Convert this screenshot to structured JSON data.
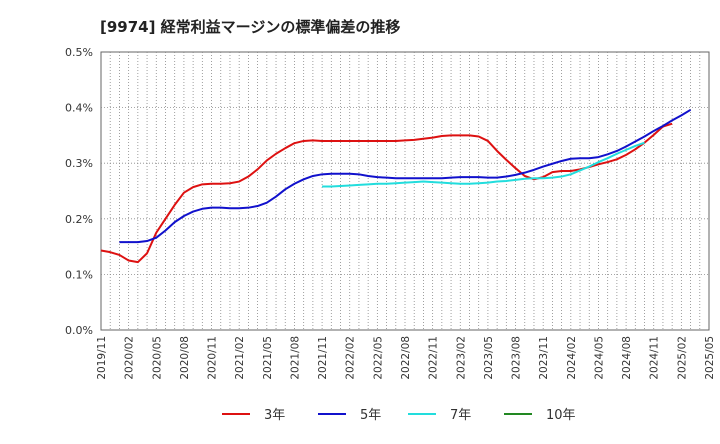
{
  "chart_data": {
    "type": "line",
    "title": "[9974]  経常利益マージンの標準偏差の推移",
    "xlabel": "",
    "ylabel": "",
    "ylim": [
      0,
      0.5
    ],
    "yticks": [
      "0.0%",
      "0.1%",
      "0.2%",
      "0.3%",
      "0.4%",
      "0.5%"
    ],
    "yvalues": [
      0,
      0.1,
      0.2,
      0.3,
      0.4,
      0.5
    ],
    "x_start": "2019/11",
    "x_end": "2025/05",
    "xticks": [
      "2019/11",
      "2020/02",
      "2020/05",
      "2020/08",
      "2020/11",
      "2021/02",
      "2021/05",
      "2021/08",
      "2021/11",
      "2022/02",
      "2022/05",
      "2022/08",
      "2022/11",
      "2023/02",
      "2023/05",
      "2023/08",
      "2023/11",
      "2024/02",
      "2024/05",
      "2024/08",
      "2024/11",
      "2025/02",
      "2025/05"
    ],
    "grid": true,
    "legend_position": "bottom",
    "series": [
      {
        "name": "3年",
        "color": "#dd1111",
        "start": "2019/11",
        "values": [
          0.143,
          0.14,
          0.135,
          0.125,
          0.122,
          0.138,
          0.175,
          0.2,
          0.225,
          0.247,
          0.257,
          0.262,
          0.263,
          0.263,
          0.264,
          0.267,
          0.276,
          0.289,
          0.305,
          0.317,
          0.327,
          0.336,
          0.34,
          0.341,
          0.34,
          0.34,
          0.34,
          0.34,
          0.34,
          0.34,
          0.34,
          0.34,
          0.34,
          0.341,
          0.342,
          0.344,
          0.346,
          0.349,
          0.35,
          0.35,
          0.35,
          0.348,
          0.34,
          0.322,
          0.306,
          0.291,
          0.277,
          0.271,
          0.275,
          0.284,
          0.286,
          0.286,
          0.289,
          0.293,
          0.298,
          0.302,
          0.307,
          0.315,
          0.325,
          0.337,
          0.351,
          0.366,
          0.371
        ]
      },
      {
        "name": "5年",
        "color": "#1111cc",
        "start": "2020/01",
        "values": [
          0.158,
          0.158,
          0.158,
          0.16,
          0.166,
          0.179,
          0.194,
          0.205,
          0.213,
          0.218,
          0.22,
          0.22,
          0.219,
          0.219,
          0.22,
          0.223,
          0.229,
          0.24,
          0.253,
          0.263,
          0.271,
          0.277,
          0.28,
          0.281,
          0.281,
          0.281,
          0.28,
          0.277,
          0.275,
          0.274,
          0.273,
          0.273,
          0.273,
          0.273,
          0.273,
          0.273,
          0.274,
          0.275,
          0.275,
          0.275,
          0.274,
          0.274,
          0.276,
          0.279,
          0.283,
          0.288,
          0.294,
          0.299,
          0.304,
          0.308,
          0.309,
          0.309,
          0.311,
          0.316,
          0.322,
          0.33,
          0.339,
          0.348,
          0.358,
          0.367,
          0.377,
          0.386,
          0.396
        ]
      },
      {
        "name": "7年",
        "color": "#22dddd",
        "start": "2021/11",
        "values": [
          0.258,
          0.258,
          0.259,
          0.26,
          0.261,
          0.262,
          0.263,
          0.263,
          0.264,
          0.265,
          0.266,
          0.267,
          0.266,
          0.265,
          0.264,
          0.263,
          0.263,
          0.264,
          0.265,
          0.267,
          0.268,
          0.27,
          0.272,
          0.273,
          0.273,
          0.274,
          0.276,
          0.28,
          0.287,
          0.294,
          0.302,
          0.309,
          0.317,
          0.324,
          0.331,
          0.337
        ]
      },
      {
        "name": "10年",
        "color": "#228822",
        "start": "2019/11",
        "values": []
      }
    ]
  }
}
